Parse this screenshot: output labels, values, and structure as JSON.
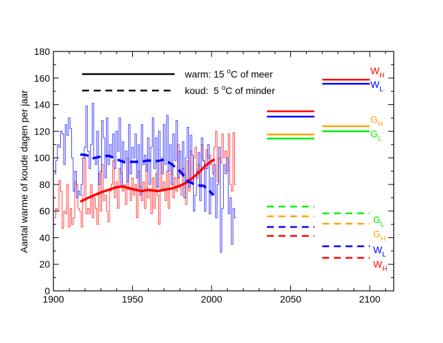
{
  "chart_data": {
    "type": "line",
    "ylabel": "Aantal warme of koude dagen per jaar",
    "xlim": [
      1900,
      2115
    ],
    "ylim": [
      0,
      180
    ],
    "x_ticks": [
      "1900",
      "1950",
      "2000",
      "2050",
      "2100"
    ],
    "y_ticks": [
      "0",
      "20",
      "40",
      "60",
      "80",
      "100",
      "120",
      "140",
      "160",
      "180"
    ],
    "grid": false,
    "legend": {
      "placement": "top-left",
      "entries": [
        {
          "style": "solid",
          "label_pre": "warm: 15 ",
          "sup": "o",
          "label_post": "C of meer"
        },
        {
          "style": "dashed",
          "label_pre": "koud:  5 ",
          "sup": "o",
          "label_post": "C of minder"
        }
      ]
    },
    "colors": {
      "warm": "#ff0000",
      "cold": "#0000ff",
      "G_H": "#ffa500",
      "G_L": "#00ee00"
    },
    "yearly": {
      "start_year": 1901,
      "cold": [
        88,
        98,
        110,
        108,
        120,
        118,
        95,
        125,
        117,
        130,
        122,
        100,
        75,
        90,
        70,
        75,
        72,
        80,
        100,
        108,
        139,
        105,
        92,
        110,
        141,
        100,
        95,
        120,
        80,
        90,
        128,
        115,
        85,
        130,
        95,
        110,
        100,
        118,
        92,
        120,
        105,
        130,
        78,
        112,
        98,
        105,
        82,
        125,
        88,
        108,
        100,
        118,
        85,
        110,
        72,
        125,
        95,
        102,
        90,
        115,
        80,
        108,
        130,
        92,
        115,
        78,
        120,
        100,
        88,
        125,
        95,
        132,
        90,
        110,
        80,
        118,
        98,
        128,
        85,
        105,
        88,
        112,
        70,
        100,
        123,
        78,
        117,
        102,
        60,
        72,
        90,
        104,
        68,
        115,
        98,
        60,
        92,
        110,
        58,
        85,
        72,
        95,
        55,
        80,
        108,
        29,
        62,
        95,
        88,
        100,
        58,
        70,
        35,
        62,
        55
      ],
      "warm": [
        55,
        62,
        60,
        83,
        75,
        47,
        60,
        58,
        80,
        48,
        62,
        50,
        55,
        82,
        80,
        62,
        60,
        48,
        72,
        100,
        58,
        62,
        58,
        80,
        55,
        70,
        62,
        50,
        88,
        60,
        95,
        68,
        72,
        60,
        52,
        75,
        80,
        98,
        70,
        82,
        62,
        92,
        88,
        75,
        80,
        65,
        100,
        78,
        68,
        85,
        72,
        80,
        55,
        90,
        78,
        68,
        82,
        62,
        95,
        70,
        75,
        58,
        85,
        62,
        88,
        72,
        50,
        98,
        75,
        82,
        68,
        90,
        62,
        88,
        95,
        70,
        85,
        75,
        110,
        78,
        72,
        92,
        88,
        65,
        98,
        75,
        105,
        82,
        100,
        108,
        85,
        95,
        78,
        110,
        98,
        92,
        106,
        100,
        102,
        95,
        88,
        108,
        120,
        82,
        100,
        96,
        118,
        100,
        105,
        90,
        118,
        80,
        75,
        119,
        80
      ]
    },
    "smoothed": {
      "warm": [
        [
          1917,
          67
        ],
        [
          1922,
          70
        ],
        [
          1926,
          72
        ],
        [
          1930,
          74
        ],
        [
          1935,
          76
        ],
        [
          1940,
          78
        ],
        [
          1944,
          78.5
        ],
        [
          1948,
          77
        ],
        [
          1952,
          76
        ],
        [
          1956,
          75
        ],
        [
          1960,
          76
        ],
        [
          1966,
          75
        ],
        [
          1970,
          76
        ],
        [
          1975,
          77
        ],
        [
          1980,
          79
        ],
        [
          1985,
          82
        ],
        [
          1988,
          85
        ],
        [
          1992,
          89
        ],
        [
          1996,
          94
        ],
        [
          2000,
          97.5
        ],
        [
          2002,
          99
        ]
      ],
      "cold": [
        [
          1917,
          102.6
        ],
        [
          1921,
          102
        ],
        [
          1925,
          99.7
        ],
        [
          1930,
          101
        ],
        [
          1935,
          101.6
        ],
        [
          1940,
          99
        ],
        [
          1945,
          96.6
        ],
        [
          1950,
          97
        ],
        [
          1955,
          97
        ],
        [
          1960,
          98
        ],
        [
          1965,
          97.5
        ],
        [
          1970,
          98.6
        ],
        [
          1975,
          95
        ],
        [
          1980,
          90
        ],
        [
          1985,
          82.5
        ],
        [
          1990,
          79.5
        ],
        [
          1995,
          79
        ],
        [
          1998,
          76
        ],
        [
          2001,
          72
        ]
      ]
    },
    "scenarios": [
      {
        "name": "W_H",
        "period": [
          2035,
          2065
        ],
        "warm": 135,
        "cold": 41.3,
        "color": "#ff0000"
      },
      {
        "name": "W_L",
        "period": [
          2035,
          2065
        ],
        "warm": 131,
        "cold": 48,
        "color": "#0000ff"
      },
      {
        "name": "G_H",
        "period": [
          2035,
          2065
        ],
        "warm": 117.6,
        "cold": 56,
        "color": "#ffa500"
      },
      {
        "name": "G_L",
        "period": [
          2035,
          2065
        ],
        "warm": 114.5,
        "cold": 63.4,
        "color": "#00ee00"
      },
      {
        "name": "W_H",
        "period": [
          2070,
          2100
        ],
        "warm": 158.8,
        "cold": 24.8,
        "color": "#ff0000"
      },
      {
        "name": "W_L",
        "period": [
          2070,
          2100
        ],
        "warm": 155.7,
        "cold": 33.5,
        "color": "#0000ff"
      },
      {
        "name": "G_H",
        "period": [
          2070,
          2100
        ],
        "warm": 123.8,
        "cold": 50.5,
        "color": "#ffa500"
      },
      {
        "name": "G_L",
        "period": [
          2070,
          2100
        ],
        "warm": 120,
        "cold": 58.3,
        "color": "#00ee00"
      }
    ],
    "scenario_labels": {
      "warm": [
        {
          "main": "W",
          "sub": "H",
          "color": "#ff0000"
        },
        {
          "main": "W",
          "sub": "L",
          "color": "#0000ff"
        },
        {
          "main": "G",
          "sub": "H",
          "color": "#ffa500"
        },
        {
          "main": "G",
          "sub": "L",
          "color": "#00ee00"
        }
      ],
      "cold": [
        {
          "main": "G",
          "sub": "L",
          "color": "#00ee00"
        },
        {
          "main": "G",
          "sub": "H",
          "color": "#ffa500"
        },
        {
          "main": "W",
          "sub": "L",
          "color": "#0000ff"
        },
        {
          "main": "W",
          "sub": "H",
          "color": "#ff0000"
        }
      ]
    }
  }
}
